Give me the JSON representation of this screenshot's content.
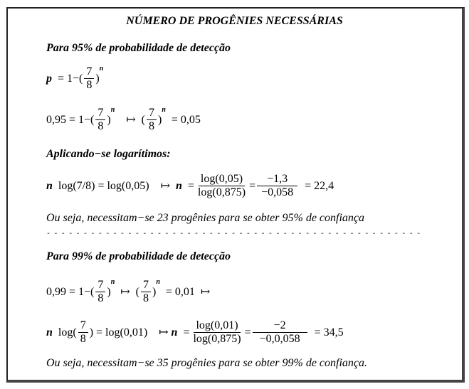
{
  "title": "NÚMERO DE PROGÊNIES NECESSÁRIAS",
  "section95": {
    "heading": "Para 95% de probabilidade de detecção",
    "formula": {
      "lhs": "p",
      "eq": "= 1−(",
      "num": "7",
      "den": "8",
      "close": ")",
      "exp": "n"
    },
    "eq2": {
      "lhs": "0,95 = 1−(",
      "num": "7",
      "den": "8",
      "close": ")",
      "exp": "n",
      "arrow": "↦",
      "open2": "(",
      "close2": ")",
      "rhs": "= 0,05"
    },
    "log_heading": "Aplicando−se logarítimos:",
    "eq3": {
      "n": "n",
      "part1": "log(7/8) = log(0,05)",
      "arrow": "↦",
      "n2": "n",
      "eq": "=",
      "num1": "log(0,05)",
      "den1": "log(0,875)",
      "eq2": "=",
      "num2": "−1,3",
      "den2": "−0,058",
      "result": "= 22,4"
    },
    "conclusion": "Ou seja, necessitam−se 23 progênies para se obter 95% de confiança"
  },
  "divider": "- - - - - - - - - - - - - - - - - - - - - - - - - - - - - - - - - - - - - - - - - - - - - - - - - - -",
  "section99": {
    "heading": "Para 99% de probabilidade de detecção",
    "eq1": {
      "lhs": "0,99 = 1−(",
      "num": "7",
      "den": "8",
      "close": ")",
      "exp": "n",
      "arrow": "↦",
      "open2": "(",
      "close2": ")",
      "rhs": "= 0,01",
      "arrow2": "↦"
    },
    "eq2": {
      "n": "n",
      "log": "log(",
      "num": "7",
      "den": "8",
      "mid": ") = log(0,01)",
      "arrow": "↦",
      "n2": "n",
      "eq": "=",
      "num1": "log(0,01)",
      "den1": "log(0,875)",
      "eq2": "=",
      "num2": "−2",
      "den2": "−0,0,058",
      "result": "= 34,5"
    },
    "conclusion": "Ou seja, necessitam−se 35 progênies para se obter 99% de confiança."
  }
}
